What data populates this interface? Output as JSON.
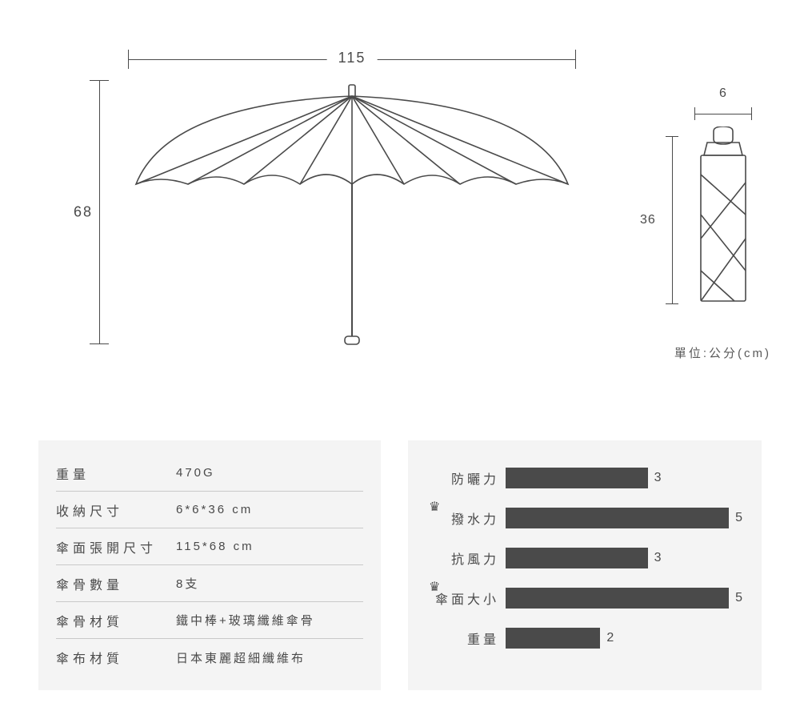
{
  "colors": {
    "line": "#4a4a4a",
    "bar": "#4a4a4a",
    "panel_bg": "#f4f4f4",
    "text": "#4a4a4a",
    "divider": "#c9c9c9",
    "page_bg": "#ffffff"
  },
  "dimensions": {
    "open_width": "115",
    "open_height": "68",
    "folded_width": "6",
    "folded_height": "36",
    "unit_note": "單位:公分(cm)"
  },
  "spec_table": {
    "rows": [
      {
        "label": "重量",
        "value": "470G"
      },
      {
        "label": "收納尺寸",
        "value": "6*6*36 cm"
      },
      {
        "label": "傘面張開尺寸",
        "value": "115*68 cm"
      },
      {
        "label": "傘骨數量",
        "value": "8支"
      },
      {
        "label": "傘骨材質",
        "value": "鐵中棒+玻璃纖維傘骨"
      },
      {
        "label": "傘布材質",
        "value": "日本東麗超細纖維布"
      }
    ]
  },
  "rating_chart": {
    "type": "bar",
    "max": 5,
    "bar_color": "#4a4a4a",
    "label_fontsize": 16,
    "items": [
      {
        "label": "防曬力",
        "value": 3,
        "crown": false
      },
      {
        "label": "撥水力",
        "value": 5,
        "crown": true
      },
      {
        "label": "抗風力",
        "value": 3,
        "crown": false
      },
      {
        "label": "傘面大小",
        "value": 5,
        "crown": true
      },
      {
        "label": "重量",
        "value": 2,
        "crown": false
      }
    ]
  }
}
